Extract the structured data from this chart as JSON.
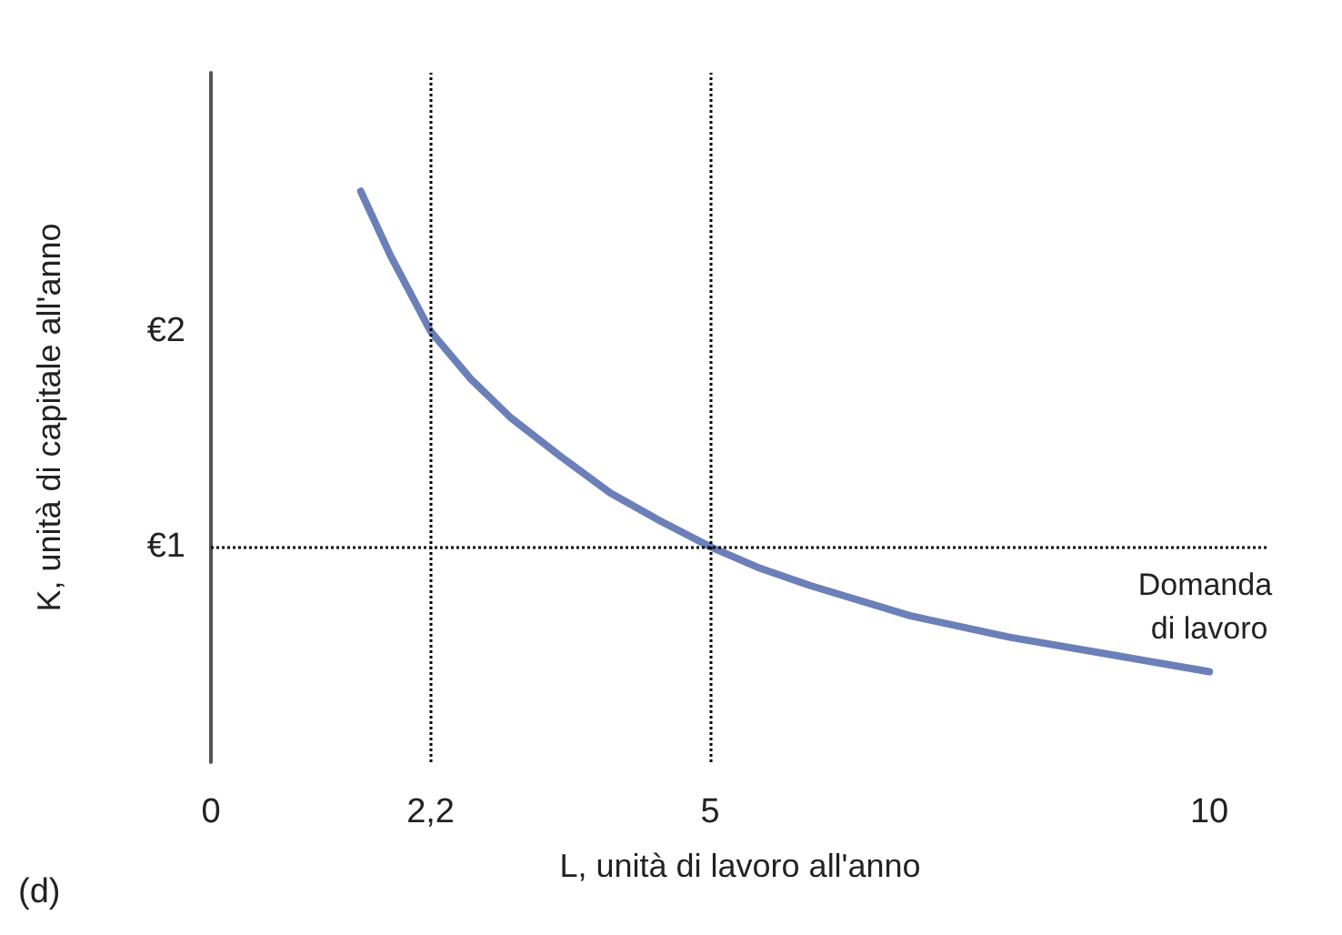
{
  "chart_data": {
    "type": "line",
    "xlabel": "L, unità di lavoro all'anno",
    "ylabel": "K, unità di capitale all'anno",
    "x": [
      1.5,
      1.8,
      2.2,
      2.6,
      3,
      3.5,
      4,
      4.5,
      5,
      5.5,
      6,
      7,
      8,
      9,
      10
    ],
    "series": [
      {
        "color": "#6b7fb8",
        "values": [
          2.65,
          2.35,
          2,
          1.78,
          1.6,
          1.42,
          1.25,
          1.12,
          1,
          0.9,
          0.82,
          0.68,
          0.58,
          0.5,
          0.42
        ]
      }
    ],
    "xlim": [
      0,
      10.6
    ],
    "ylim": [
      0,
      3.2
    ],
    "xticks": [
      0,
      {
        "value": 2.2,
        "label": "2,2"
      },
      5,
      10
    ],
    "yticks": [
      {
        "value": 1,
        "label": "€1"
      },
      {
        "value": 2,
        "label": "€2"
      }
    ],
    "ref_lines": [
      {
        "axis": "x",
        "value": 2.2,
        "line_style": "dotted",
        "color": "#000000"
      },
      {
        "axis": "x",
        "value": 5,
        "line_style": "dotted",
        "color": "#000000"
      },
      {
        "axis": "y",
        "value": 1,
        "line_style": "dotted",
        "color": "#000000"
      }
    ],
    "annotations": [
      "Domanda di lavoro",
      "(d)"
    ],
    "grid": false,
    "marker": "none",
    "line_style": "solid"
  }
}
